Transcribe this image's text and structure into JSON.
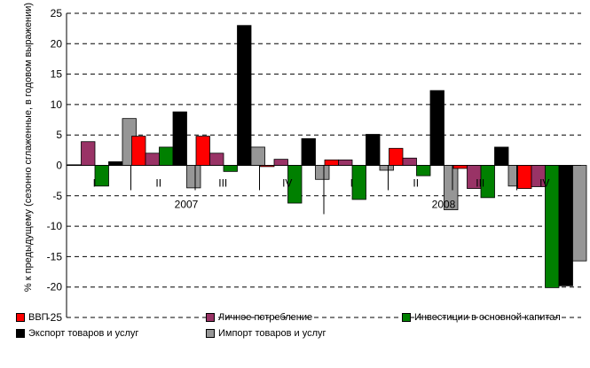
{
  "chart_data": {
    "type": "bar",
    "ylabel": "% к предыдущему (сезонно сглаженные, в годовом выражении)",
    "ylim": [
      -25,
      25
    ],
    "yticks": [
      25,
      20,
      15,
      10,
      5,
      0,
      -5,
      -10,
      -15,
      -20,
      -25
    ],
    "grid": true,
    "legend_position": "bottom",
    "categories": [
      "I",
      "II",
      "III",
      "IV",
      "I",
      "II",
      "III",
      "IV"
    ],
    "years": [
      {
        "label": "2007",
        "quarters": [
          "I",
          "II",
          "III",
          "IV"
        ]
      },
      {
        "label": "2008",
        "quarters": [
          "I",
          "II",
          "III",
          "IV"
        ]
      }
    ],
    "series": [
      {
        "name": "ВВП",
        "color": "#ff0000",
        "values": [
          0.1,
          4.8,
          4.8,
          -0.2,
          0.9,
          2.8,
          -0.5,
          -3.8
        ]
      },
      {
        "name": "Личное потребление",
        "color": "#993366",
        "values": [
          3.9,
          2.0,
          2.0,
          1.0,
          0.9,
          1.2,
          -3.8,
          -3.5
        ]
      },
      {
        "name": "Инвестиции в основной капитал",
        "color": "#008000",
        "values": [
          -3.4,
          3.0,
          -1.0,
          -6.2,
          -5.6,
          -1.7,
          -5.3,
          -20.1
        ]
      },
      {
        "name": "Экспорт товаров и услуг",
        "color": "#000000",
        "values": [
          0.6,
          8.8,
          23.0,
          4.4,
          5.1,
          12.3,
          3.0,
          -19.8
        ]
      },
      {
        "name": "Импорт товаров и услуг",
        "color": "#969696",
        "values": [
          7.7,
          -3.7,
          3.0,
          -2.3,
          -0.8,
          -7.3,
          -3.4,
          -15.7
        ]
      }
    ]
  }
}
